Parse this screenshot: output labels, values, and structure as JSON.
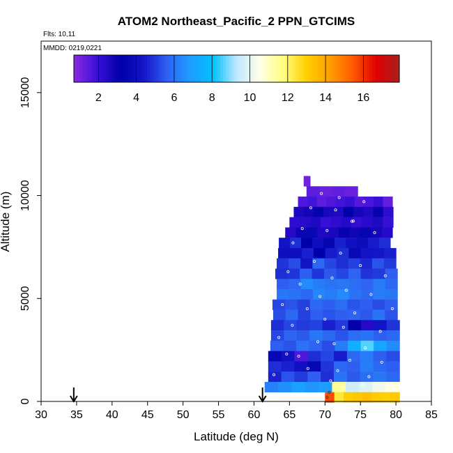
{
  "chart_data": {
    "type": "heatmap",
    "title": "ATOM2 Northeast_Pacific_2 PPN_GTCIMS",
    "flights_label": "Flts: 10,11",
    "dates_label": "MMDD: 0219,0221",
    "xlabel": "Latitude (deg N)",
    "ylabel": "Altitude (m)",
    "xlim": [
      30,
      85
    ],
    "ylim": [
      0,
      17500
    ],
    "x_ticks": [
      30,
      35,
      40,
      45,
      50,
      55,
      60,
      65,
      70,
      75,
      80,
      85
    ],
    "x_tick_labels": [
      "30",
      "35",
      "40",
      "45",
      "50",
      "55",
      "60",
      "65",
      "70",
      "75",
      "80",
      "85"
    ],
    "y_ticks": [
      0,
      5000,
      10000,
      15000
    ],
    "y_tick_labels": [
      "0",
      "5000",
      "10000",
      "15000"
    ],
    "colorbar": {
      "range": [
        0.7,
        17.9
      ],
      "ticks": [
        2,
        4,
        6,
        8,
        10,
        12,
        14,
        16
      ],
      "tick_labels": [
        "2",
        "4",
        "6",
        "8",
        "10",
        "12",
        "14",
        "16"
      ],
      "colors": [
        "#8a2be2",
        "#3a10d8",
        "#0000a8",
        "#1414c8",
        "#2f60f0",
        "#1e9cff",
        "#00c2ff",
        "#bfe9ff",
        "#ffffe8",
        "#ffff80",
        "#ffd000",
        "#ffa000",
        "#ff5a00",
        "#e00000",
        "#a82020"
      ],
      "position": "top-inset"
    },
    "arrows_lat": [
      34.6,
      61.2
    ],
    "rows": [
      {
        "alt": 10700,
        "lat_min": 67.0,
        "lat_max": 67.9,
        "values": [
          1.1
        ]
      },
      {
        "alt": 10200,
        "lat_min": 67.4,
        "lat_max": 74.6,
        "values": [
          1.4,
          1.2,
          1.3,
          1.2
        ]
      },
      {
        "alt": 9700,
        "lat_min": 66.2,
        "lat_max": 79.5,
        "values": [
          1.6,
          1.8,
          1.4,
          1.6,
          1.8,
          2.0,
          1.5,
          1.7,
          2.0,
          1.3
        ]
      },
      {
        "alt": 9200,
        "lat_min": 65.6,
        "lat_max": 79.6,
        "values": [
          2.6,
          2.8,
          3.4,
          2.6,
          2.5,
          3.2,
          2.7,
          2.5,
          3.0,
          2.2
        ]
      },
      {
        "alt": 8700,
        "lat_min": 65.0,
        "lat_max": 79.6,
        "values": [
          2.2,
          2.3,
          2.5,
          2.0,
          2.2,
          2.4,
          2.1,
          2.3,
          2.5,
          2.0
        ]
      },
      {
        "alt": 8200,
        "lat_min": 64.4,
        "lat_max": 79.5,
        "values": [
          2.4,
          2.9,
          3.6,
          2.5,
          2.6,
          3.0,
          2.8,
          3.5,
          2.7,
          2.4
        ]
      },
      {
        "alt": 7700,
        "lat_min": 63.5,
        "lat_max": 79.2,
        "values": [
          4.3,
          4.8,
          3.2,
          4.0,
          3.5,
          4.6,
          4.2,
          3.9,
          4.5,
          4.8
        ]
      },
      {
        "alt": 7200,
        "lat_min": 63.4,
        "lat_max": 80.0,
        "values": [
          4.1,
          4.0,
          4.6,
          3.2,
          4.5,
          4.8,
          3.7,
          4.3,
          4.4,
          4.6
        ]
      },
      {
        "alt": 6700,
        "lat_min": 63.2,
        "lat_max": 80.0,
        "values": [
          4.9,
          5.3,
          4.3,
          5.8,
          5.2,
          4.8,
          5.1,
          4.7,
          5.4,
          5.0
        ]
      },
      {
        "alt": 6200,
        "lat_min": 63.0,
        "lat_max": 80.2,
        "values": [
          4.8,
          4.9,
          5.6,
          4.9,
          5.5,
          5.2,
          5.7,
          4.9,
          5.0,
          5.6
        ]
      },
      {
        "alt": 5700,
        "lat_min": 63.2,
        "lat_max": 80.2,
        "values": [
          5.6,
          5.8,
          6.5,
          6.2,
          6.0,
          6.1,
          5.9,
          5.7,
          6.2,
          5.8
        ]
      },
      {
        "alt": 5200,
        "lat_min": 63.2,
        "lat_max": 80.2,
        "values": [
          6.1,
          6.0,
          5.8,
          6.4,
          6.2,
          6.5,
          6.0,
          5.8,
          6.2,
          6.1
        ]
      },
      {
        "alt": 4700,
        "lat_min": 62.6,
        "lat_max": 80.2,
        "values": [
          5.2,
          5.4,
          5.1,
          5.8,
          5.6,
          5.9,
          5.4,
          5.6,
          5.3,
          5.6
        ]
      },
      {
        "alt": 4200,
        "lat_min": 62.7,
        "lat_max": 80.2,
        "values": [
          5.3,
          5.8,
          5.1,
          5.6,
          5.4,
          5.6,
          5.7,
          5.5,
          6.0,
          5.4
        ]
      },
      {
        "alt": 3700,
        "lat_min": 62.4,
        "lat_max": 80.5,
        "values": [
          4.8,
          5.2,
          5.0,
          5.1,
          4.6,
          5.0,
          3.1,
          2.4,
          4.3,
          4.9
        ]
      },
      {
        "alt": 3200,
        "lat_min": 62.4,
        "lat_max": 80.5,
        "values": [
          5.2,
          5.7,
          5.5,
          6.1,
          5.8,
          5.4,
          5.9,
          6.0,
          5.6,
          5.8
        ]
      },
      {
        "alt": 2700,
        "lat_min": 62.3,
        "lat_max": 80.5,
        "values": [
          5.6,
          5.4,
          6.0,
          5.7,
          5.3,
          6.2,
          7.5,
          8.6,
          7.2,
          6.5
        ]
      },
      {
        "alt": 2200,
        "lat_min": 62.0,
        "lat_max": 80.5,
        "values": [
          3.6,
          4.2,
          1.6,
          4.8,
          5.2,
          4.5,
          5.8,
          6.2,
          5.6,
          5.3
        ]
      },
      {
        "alt": 1700,
        "lat_min": 62.0,
        "lat_max": 80.5,
        "values": [
          4.8,
          4.6,
          4.2,
          3.6,
          4.9,
          5.8,
          5.6,
          6.2,
          5.8,
          5.6
        ]
      },
      {
        "alt": 1200,
        "lat_min": 62.0,
        "lat_max": 80.5,
        "values": [
          4.6,
          5.4,
          5.0,
          5.6,
          4.8,
          6.0,
          5.5,
          5.9,
          6.1,
          5.8
        ]
      },
      {
        "alt": 700,
        "lat_min": 61.5,
        "lat_max": 80.5,
        "values": [
          6.3,
          6.6,
          7.0,
          6.7,
          6.9,
          11.5,
          9.6,
          9.9,
          10.3,
          10.6
        ]
      },
      {
        "alt": 200,
        "lat_min": 70.0,
        "lat_max": 80.5,
        "values": [
          15.6,
          12.4,
          13.0,
          13.2,
          13.4,
          13.1,
          13.0,
          13.2
        ]
      }
    ],
    "sample_points": [
      [
        69.5,
        10100
      ],
      [
        72.0,
        9900
      ],
      [
        75.5,
        9700
      ],
      [
        68.0,
        9400
      ],
      [
        71.5,
        9300
      ],
      [
        73.8,
        8750
      ],
      [
        74.0,
        8760
      ],
      [
        66.8,
        8400
      ],
      [
        70.3,
        8300
      ],
      [
        77.0,
        8200
      ],
      [
        65.5,
        7700
      ],
      [
        72.2,
        7200
      ],
      [
        68.5,
        6800
      ],
      [
        75.0,
        6600
      ],
      [
        64.8,
        6300
      ],
      [
        71.0,
        6000
      ],
      [
        78.5,
        6100
      ],
      [
        66.5,
        5700
      ],
      [
        73.0,
        5400
      ],
      [
        69.3,
        5100
      ],
      [
        76.5,
        5200
      ],
      [
        64.0,
        4700
      ],
      [
        67.5,
        4500
      ],
      [
        74.2,
        4300
      ],
      [
        79.5,
        4500
      ],
      [
        70.0,
        4000
      ],
      [
        65.4,
        3700
      ],
      [
        72.6,
        3600
      ],
      [
        77.8,
        3400
      ],
      [
        63.5,
        3100
      ],
      [
        69.0,
        2900
      ],
      [
        71.3,
        2800
      ],
      [
        75.7,
        2600
      ],
      [
        64.6,
        2300
      ],
      [
        66.3,
        2200
      ],
      [
        73.5,
        2000
      ],
      [
        78.0,
        1900
      ],
      [
        67.6,
        1600
      ],
      [
        71.8,
        1500
      ],
      [
        62.8,
        1300
      ],
      [
        76.2,
        1200
      ],
      [
        70.8,
        1000
      ],
      [
        72.6,
        700
      ],
      [
        75.3,
        800
      ]
    ],
    "dark_sample_points": [
      [
        70.3,
        200
      ],
      [
        70.6,
        450
      ]
    ]
  }
}
